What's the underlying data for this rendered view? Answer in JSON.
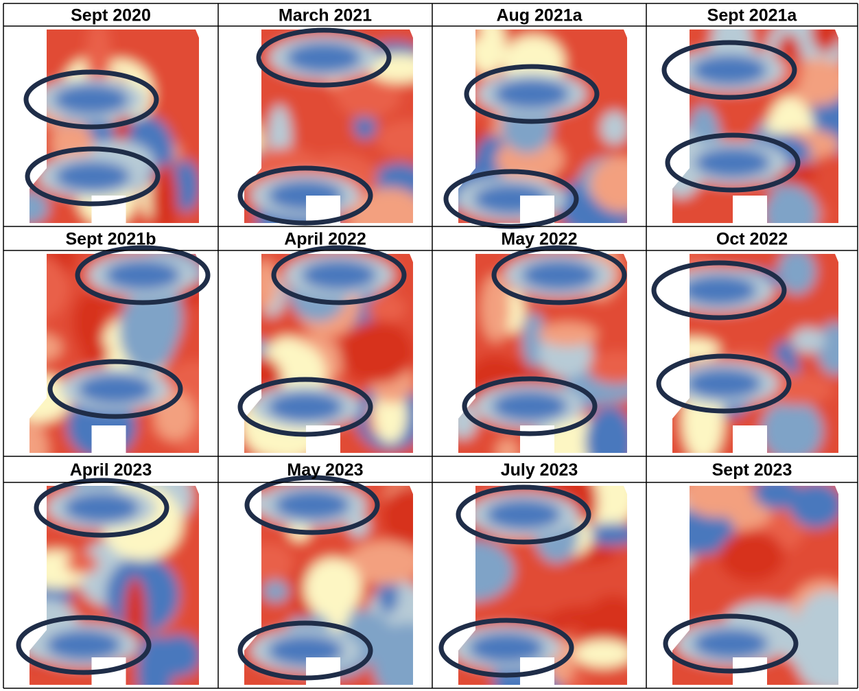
{
  "panels": [
    {
      "title": "Sept 2020"
    },
    {
      "title": "March 2021"
    },
    {
      "title": "Aug 2021a"
    },
    {
      "title": "Sept 2021a"
    },
    {
      "title": "Sept 2021b"
    },
    {
      "title": "April 2022"
    },
    {
      "title": "May 2022"
    },
    {
      "title": "Oct 2022"
    },
    {
      "title": "April 2023"
    },
    {
      "title": "May 2023"
    },
    {
      "title": "July 2023"
    },
    {
      "title": "Sept 2023"
    }
  ]
}
